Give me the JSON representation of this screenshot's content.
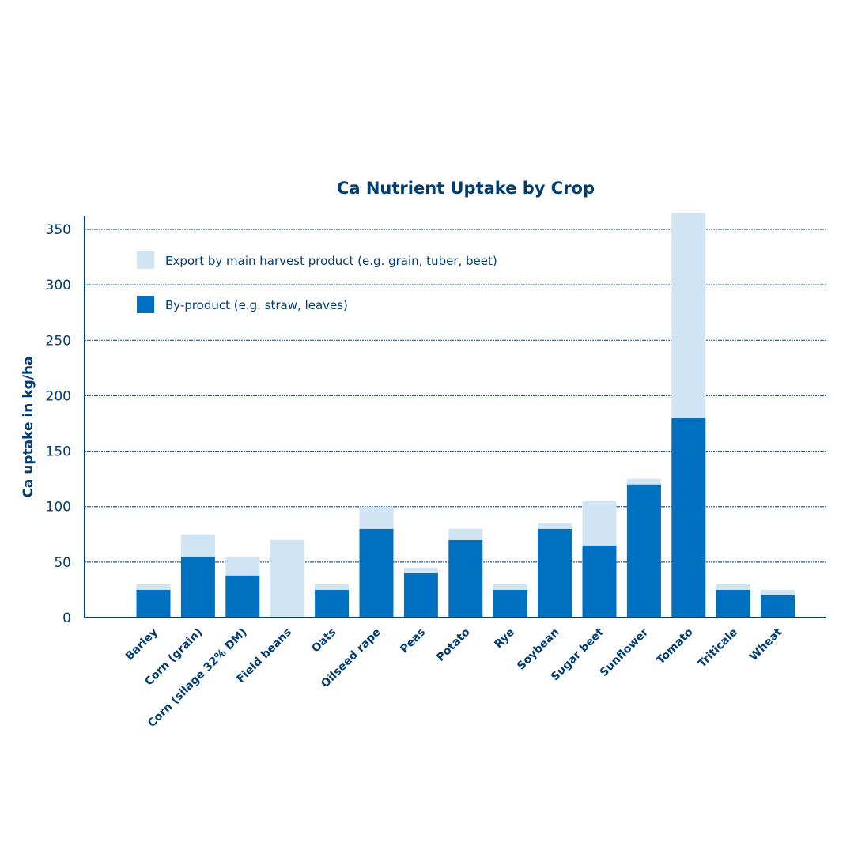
{
  "chart_data": {
    "type": "bar",
    "stacked": true,
    "title": "Ca Nutrient Uptake by Crop",
    "xlabel": "",
    "ylabel": "Ca uptake in kg/ha",
    "ylim": [
      0,
      355
    ],
    "yticks": [
      0,
      50,
      100,
      150,
      200,
      250,
      300,
      350
    ],
    "grid": true,
    "legend_position": "top-left",
    "categories": [
      "Barley",
      "Corn (grain)",
      "Corn (silage 32% DM)",
      "Field beans",
      "Oats",
      "Oilseed rape",
      "Peas",
      "Potato",
      "Rye",
      "Soybean",
      "Sugar beet",
      "Sunflower",
      "Tomato",
      "Triticale",
      "Wheat"
    ],
    "series": [
      {
        "name": "By-product (e.g. straw, leaves)",
        "color": "#0070c0",
        "values": [
          25,
          55,
          38,
          0,
          25,
          80,
          40,
          70,
          25,
          80,
          65,
          120,
          180,
          25,
          20
        ]
      },
      {
        "name": "Export by main harvest product (e.g. grain, tuber, beet)",
        "color": "#d0e4f3",
        "values": [
          5,
          20,
          17,
          70,
          5,
          20,
          5,
          10,
          5,
          5,
          40,
          5,
          185,
          5,
          5
        ]
      }
    ],
    "colors": {
      "text": "#003d73",
      "grid": "#2a5a8f"
    }
  }
}
